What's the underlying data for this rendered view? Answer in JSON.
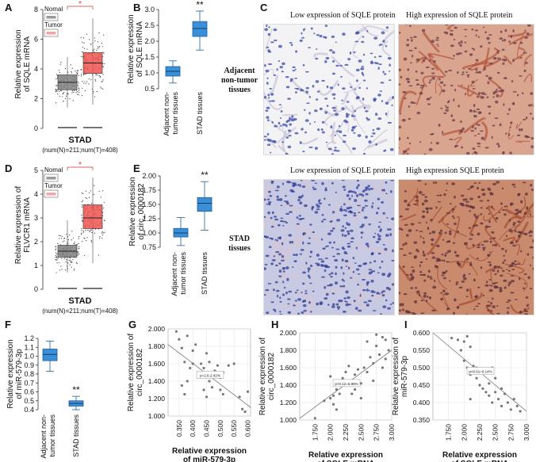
{
  "colors": {
    "gray_box": "#7f7f7f",
    "red_box": "#ef5350",
    "blue_box": "#3a8fd8",
    "blue_edge": "#1d5f9e",
    "pink_legend": "#f5a3a3",
    "scatter_pt": "#777777"
  },
  "panel_letters": [
    "A",
    "B",
    "C",
    "D",
    "E",
    "F",
    "G",
    "H",
    "I"
  ],
  "stad": {
    "legend_normal": "Nomal",
    "legend_tumor": "Tumor",
    "xlabel": "STAD",
    "counts": "(num(N)=211;num(T)=408)",
    "star": "*"
  },
  "panelC": {
    "top_left_title": "Low expression of SQLE protein",
    "top_right_title": "High expression of SQLE protein",
    "bottom_left_title": "Low expression of SQLE protein",
    "bottom_right_title": "High expression SQLE protein",
    "row1_label": [
      "Adjacent",
      "non-tumor",
      "tissues"
    ],
    "row2_label": [
      "STAD",
      "tissues"
    ]
  },
  "chart_data": [
    {
      "id": "A",
      "type": "box",
      "ylabel": [
        "Relative expression",
        "of SQLE mRNA"
      ],
      "ylim": [
        0,
        8
      ],
      "yticks": [
        "0",
        "2",
        "4",
        "6",
        "8"
      ],
      "groups": [
        {
          "name": "Nomal",
          "median": 3.1,
          "q1": 2.6,
          "q3": 3.6,
          "lo": 1.4,
          "hi": 4.8
        },
        {
          "name": "Tumor",
          "median": 4.4,
          "q1": 3.7,
          "q3": 5.1,
          "lo": 1.6,
          "hi": 7.4
        }
      ]
    },
    {
      "id": "B",
      "type": "box",
      "ylabel": [
        "Relative expression",
        "of SQLE mRNA"
      ],
      "ylim": [
        0.5,
        3.0
      ],
      "yticks": [
        "0.5",
        "1.0",
        "1.5",
        "2.0",
        "2.5",
        "3.0"
      ],
      "categories": [
        "Adjacent non-",
        "tumor tissues",
        "STAD tissues"
      ],
      "sig": "**",
      "groups": [
        {
          "median": 1.05,
          "q1": 0.9,
          "q3": 1.2,
          "lo": 0.68,
          "hi": 1.38
        },
        {
          "median": 2.4,
          "q1": 2.15,
          "q3": 2.62,
          "lo": 1.72,
          "hi": 2.95
        }
      ]
    },
    {
      "id": "D",
      "type": "box",
      "ylabel": [
        "Relative expression of",
        "FLVCR1 mRNA"
      ],
      "ylim": [
        0,
        5
      ],
      "yticks": [
        "0",
        "1",
        "2",
        "3",
        "4",
        "5"
      ],
      "groups": [
        {
          "name": "Nomal",
          "median": 1.6,
          "q1": 1.35,
          "q3": 1.85,
          "lo": 0.7,
          "hi": 2.9
        },
        {
          "name": "Tumor",
          "median": 3.0,
          "q1": 2.55,
          "q3": 3.55,
          "lo": 1.1,
          "hi": 4.7
        }
      ]
    },
    {
      "id": "E",
      "type": "box",
      "ylabel": [
        "Relative expression",
        "of circ_0000182"
      ],
      "ylim": [
        0.75,
        2.0
      ],
      "yticks": [
        "0.75",
        "1.00",
        "1.25",
        "1.50",
        "1.75",
        "2.00"
      ],
      "categories": [
        "Adjacent non-",
        "tumor tissues",
        "STAD tissues"
      ],
      "sig": "**",
      "groups": [
        {
          "median": 1.0,
          "q1": 0.93,
          "q3": 1.08,
          "lo": 0.78,
          "hi": 1.27
        },
        {
          "median": 1.52,
          "q1": 1.38,
          "q3": 1.62,
          "lo": 1.05,
          "hi": 1.9
        }
      ]
    },
    {
      "id": "F",
      "type": "box",
      "ylabel": [
        "Relative expression",
        "of miR-579-3p"
      ],
      "ylim": [
        0.4,
        1.2
      ],
      "yticks": [
        "0.4",
        "0.5",
        "0.6",
        "0.7",
        "0.8",
        "0.9",
        "1.0",
        "1.1",
        "1.2"
      ],
      "categories": [
        "Adjacent non-",
        "tumor tissues",
        "STAD tissues"
      ],
      "sig": "**",
      "groups": [
        {
          "median": 1.02,
          "q1": 0.95,
          "q3": 1.08,
          "lo": 0.83,
          "hi": 1.17
        },
        {
          "median": 0.47,
          "q1": 0.44,
          "q3": 0.5,
          "lo": 0.4,
          "hi": 0.55
        }
      ]
    },
    {
      "id": "G",
      "type": "scatter",
      "xlabel": [
        "Relative expression",
        "of miR-579-3p"
      ],
      "ylabel": [
        "Relative expression of",
        "circ_0000182"
      ],
      "xlim": [
        0.31,
        0.61
      ],
      "ylim": [
        1.0,
        2.0
      ],
      "xticks": [
        "0.350",
        "0.400",
        "0.450",
        "0.500",
        "0.550",
        "0.600"
      ],
      "yticks": [
        "1.000",
        "1.200",
        "1.400",
        "1.600",
        "1.800",
        "2.000"
      ],
      "annotation": "p=2.6-2.42%",
      "line": [
        [
          0.31,
          1.82
        ],
        [
          0.61,
          1.1
        ]
      ],
      "points": [
        [
          0.34,
          1.97
        ],
        [
          0.35,
          1.88
        ],
        [
          0.36,
          1.78
        ],
        [
          0.36,
          1.35
        ],
        [
          0.37,
          1.62
        ],
        [
          0.37,
          1.25
        ],
        [
          0.38,
          1.92
        ],
        [
          0.39,
          1.55
        ],
        [
          0.4,
          1.6
        ],
        [
          0.4,
          1.75
        ],
        [
          0.41,
          1.82
        ],
        [
          0.42,
          1.45
        ],
        [
          0.43,
          1.6
        ],
        [
          0.44,
          1.55
        ],
        [
          0.44,
          1.3
        ],
        [
          0.45,
          1.72
        ],
        [
          0.46,
          1.4
        ],
        [
          0.46,
          1.62
        ],
        [
          0.47,
          1.33
        ],
        [
          0.48,
          1.52
        ],
        [
          0.48,
          1.47
        ],
        [
          0.49,
          1.58
        ],
        [
          0.5,
          1.44
        ],
        [
          0.5,
          1.3
        ],
        [
          0.51,
          1.5
        ],
        [
          0.51,
          1.25
        ],
        [
          0.53,
          1.58
        ],
        [
          0.55,
          1.6
        ],
        [
          0.57,
          1.22
        ],
        [
          0.58,
          1.08
        ],
        [
          0.59,
          1.05
        ],
        [
          0.6,
          1.28
        ],
        [
          0.38,
          1.4
        ],
        [
          0.45,
          1.22
        ]
      ]
    },
    {
      "id": "H",
      "type": "scatter",
      "xlabel": [
        "Relative expression",
        "of SQLE mRNA"
      ],
      "ylabel": [
        "Relative expression of",
        "circ_0000182"
      ],
      "xlim": [
        1.5,
        3.0
      ],
      "ylim": [
        1.0,
        2.0
      ],
      "xticks": [
        "1.750",
        "2.000",
        "2.250",
        "2.500",
        "2.750",
        "3.000"
      ],
      "yticks": [
        "1.000",
        "1.200",
        "1.400",
        "1.600",
        "1.800",
        "2.000"
      ],
      "annotation": "p<0.12=5.98%",
      "line": [
        [
          1.5,
          1.02
        ],
        [
          3.0,
          1.8
        ]
      ],
      "points": [
        [
          1.75,
          1.02
        ],
        [
          1.9,
          1.22
        ],
        [
          2.0,
          1.25
        ],
        [
          2.0,
          1.5
        ],
        [
          2.05,
          1.28
        ],
        [
          2.1,
          1.35
        ],
        [
          2.1,
          1.12
        ],
        [
          2.15,
          1.3
        ],
        [
          2.2,
          1.48
        ],
        [
          2.2,
          1.4
        ],
        [
          2.25,
          1.55
        ],
        [
          2.3,
          1.45
        ],
        [
          2.3,
          1.62
        ],
        [
          2.35,
          1.3
        ],
        [
          2.4,
          1.52
        ],
        [
          2.45,
          1.58
        ],
        [
          2.5,
          1.42
        ],
        [
          2.5,
          1.25
        ],
        [
          2.55,
          1.6
        ],
        [
          2.6,
          1.55
        ],
        [
          2.6,
          1.9
        ],
        [
          2.65,
          1.72
        ],
        [
          2.7,
          1.65
        ],
        [
          2.7,
          1.45
        ],
        [
          2.75,
          1.85
        ],
        [
          2.75,
          1.98
        ],
        [
          2.8,
          1.75
        ],
        [
          2.85,
          1.6
        ],
        [
          2.85,
          1.95
        ],
        [
          2.9,
          1.92
        ],
        [
          2.9,
          1.7
        ],
        [
          2.95,
          1.8
        ],
        [
          2.05,
          1.18
        ],
        [
          2.4,
          1.35
        ]
      ]
    },
    {
      "id": "I",
      "type": "scatter",
      "xlabel": [
        "Relative expression",
        "of SQLE mRNA"
      ],
      "ylabel": [
        "Relative expression of",
        "miR-579-3p"
      ],
      "xlim": [
        1.5,
        3.0
      ],
      "ylim": [
        0.35,
        0.6
      ],
      "xticks": [
        "1.750",
        "2.000",
        "2.250",
        "2.500",
        "2.750",
        "3.000"
      ],
      "yticks": [
        "0.350",
        "0.400",
        "0.450",
        "0.500",
        "0.550",
        "0.600"
      ],
      "annotation": "p<0.01=0.14%",
      "line": [
        [
          1.5,
          0.6
        ],
        [
          3.0,
          0.375
        ]
      ],
      "points": [
        [
          1.8,
          0.585
        ],
        [
          1.9,
          0.58
        ],
        [
          1.95,
          0.55
        ],
        [
          2.0,
          0.575
        ],
        [
          2.0,
          0.52
        ],
        [
          2.05,
          0.59
        ],
        [
          2.05,
          0.5
        ],
        [
          2.1,
          0.48
        ],
        [
          2.1,
          0.56
        ],
        [
          2.15,
          0.505
        ],
        [
          2.2,
          0.5
        ],
        [
          2.2,
          0.47
        ],
        [
          2.25,
          0.45
        ],
        [
          2.3,
          0.49
        ],
        [
          2.3,
          0.44
        ],
        [
          2.35,
          0.43
        ],
        [
          2.4,
          0.455
        ],
        [
          2.4,
          0.42
        ],
        [
          2.45,
          0.4
        ],
        [
          2.5,
          0.47
        ],
        [
          2.5,
          0.43
        ],
        [
          2.55,
          0.41
        ],
        [
          2.6,
          0.44
        ],
        [
          2.6,
          0.39
        ],
        [
          2.65,
          0.425
        ],
        [
          2.7,
          0.4
        ],
        [
          2.75,
          0.38
        ],
        [
          2.8,
          0.41
        ],
        [
          2.85,
          0.39
        ],
        [
          2.9,
          0.375
        ],
        [
          2.1,
          0.41
        ],
        [
          2.45,
          0.5
        ]
      ]
    }
  ]
}
